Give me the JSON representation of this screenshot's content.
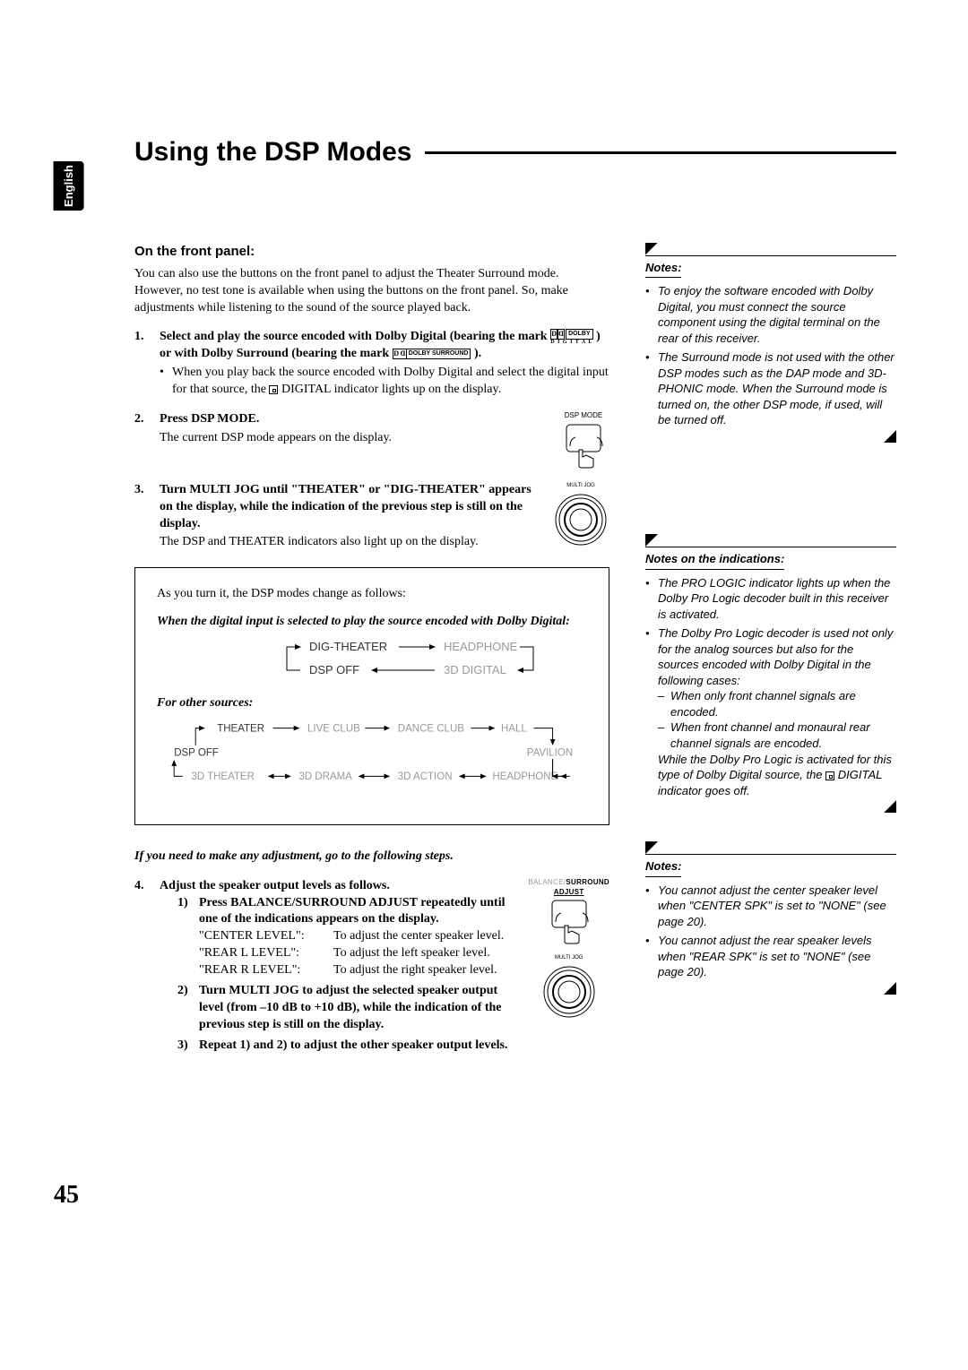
{
  "language_tab": "English",
  "page_title": "Using the DSP Modes",
  "page_number": "45",
  "section_heading": "On the front panel:",
  "intro_para": "You can also use the buttons on the front panel to adjust the Theater Surround mode. However, no test tone is available when using the buttons on the front panel. So, make adjustments while listening to the sound of the source played back.",
  "step1_lead": "Select and play the source encoded with Dolby Digital (bearing the mark ",
  "step1_mid": " ) or with Dolby Surround (bearing the mark ",
  "step1_tail": " ).",
  "step1_bullet": "When you play back the source encoded with Dolby Digital and select the digital input for that source, the ",
  "step1_bullet_tail": " DIGITAL indicator lights up on the display.",
  "step2_bold": "Press DSP MODE.",
  "step2_sub": "The current DSP mode appears on the display.",
  "step2_label": "DSP MODE",
  "step3_bold": "Turn MULTI JOG until \"THEATER\" or \"DIG-THEATER\" appears on the display, while the indication of the previous step is still on the display.",
  "step3_sub": "The DSP and THEATER indicators also light up on the display.",
  "step3_label": "MULTI JOG",
  "dsp_intro": "As you turn it, the DSP modes change as follows:",
  "dsp_digital_heading": "When the digital input is selected to play the source encoded with Dolby Digital:",
  "dsp_digital_nodes": [
    "DIG-THEATER",
    "HEADPHONE",
    "DSP OFF",
    "3D DIGITAL"
  ],
  "dsp_other_heading": "For other sources:",
  "dsp_other_row1": [
    "THEATER",
    "LIVE CLUB",
    "DANCE CLUB",
    "HALL"
  ],
  "dsp_other_right": "PAVILION",
  "dsp_other_left": "DSP OFF",
  "dsp_other_row2": [
    "3D THEATER",
    "3D DRAMA",
    "3D ACTION",
    "HEADPHONE"
  ],
  "node_colors": {
    "dark": "#333333",
    "light": "#999999"
  },
  "adjust_prompt": "If you need to make any adjustment, go to the following steps.",
  "step4_bold": "Adjust the speaker output levels as follows.",
  "step4_1a": "Press BALANCE/SURROUND ADJUST repeatedly until one of the indications appears on the display.",
  "step4_1_rows": [
    {
      "label": "\"CENTER LEVEL\":",
      "desc": "To adjust the center speaker level."
    },
    {
      "label": "\"REAR L LEVEL\":",
      "desc": "To adjust the left speaker level."
    },
    {
      "label": "\"REAR R LEVEL\":",
      "desc": "To adjust the right speaker level."
    }
  ],
  "step4_2": "Turn MULTI JOG to adjust the selected speaker output level (from –10 dB to +10 dB), while the indication of the previous step is still on the display.",
  "step4_3": "Repeat 1) and 2) to adjust the other speaker output levels.",
  "step4_label_bal": "BALANCE/",
  "step4_label_surr": "SURROUND",
  "step4_label_adj": "ADJUST",
  "step4_jog_label": "MULTI JOG",
  "notes1_title": "Notes:",
  "notes1": [
    "To enjoy the software encoded with Dolby Digital, you must connect the source component using the digital terminal on the rear of this receiver.",
    "The Surround mode is not used with the other DSP modes such as the DAP mode and 3D-PHONIC mode. When the Surround mode is turned on, the other DSP mode, if used, will be turned off."
  ],
  "notes2_title": "Notes on the indications:",
  "notes2_item1": "The PRO LOGIC indicator lights up when the Dolby Pro Logic decoder built in this receiver is activated.",
  "notes2_item2_lead": "The Dolby Pro Logic decoder is used not only for the analog sources but also for the sources encoded with Dolby Digital in the following cases:",
  "notes2_item2_dash1": "When only front channel signals are encoded.",
  "notes2_item2_dash2": "When front channel and monaural rear channel signals are encoded.",
  "notes2_item2_tail": "While the Dolby Pro Logic is activated for this type of Dolby Digital source, the ",
  "notes2_item2_tail2": " DIGITAL indicator goes off.",
  "notes3_title": "Notes:",
  "notes3": [
    "You cannot adjust the center speaker level when \"CENTER SPK\" is set to \"NONE\" (see page 20).",
    "You cannot adjust the rear speaker levels when \"REAR SPK\" is set to \"NONE\" (see page 20)."
  ]
}
